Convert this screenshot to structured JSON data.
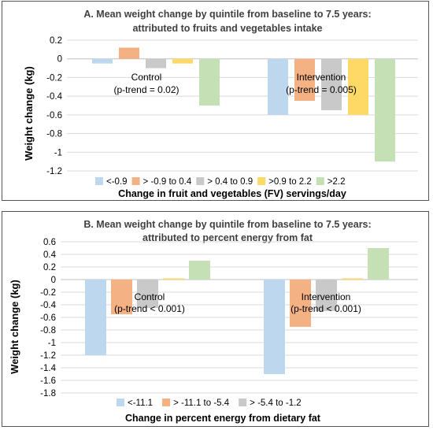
{
  "chart_data": [
    {
      "type": "bar",
      "title": "A. Mean weight change by quintile from baseline to 7.5 years:",
      "subtitle": "attributed to fruits and vegetables intake",
      "xlabel": "Change in fruit and vegetables (FV) servings/day",
      "ylabel": "Weight change (kg)",
      "ylim": [
        -1.2,
        0.2
      ],
      "yticks": [
        0.2,
        0,
        -0.2,
        -0.4,
        -0.6,
        -0.8,
        -1,
        -1.2
      ],
      "ytick_labels": [
        "0.2",
        "0",
        "-0.2",
        "-0.4",
        "-0.6",
        "-0.8",
        "-1",
        "-1.2"
      ],
      "categories": [
        "Control",
        "Intervention"
      ],
      "annotations": [
        "(p-trend = 0.02)",
        "(p-trend = 0.005)"
      ],
      "legend_position": "bottom",
      "series": [
        {
          "name": "<-0.9",
          "color": "#bdd7ee",
          "values": [
            -0.05,
            -0.6
          ]
        },
        {
          "name": "> -0.9 to 0.4",
          "color": "#f4b183",
          "values": [
            0.12,
            -0.45
          ]
        },
        {
          "name": "> 0.4 to 0.9",
          "color": "#c9c9c9",
          "values": [
            -0.1,
            -0.55
          ]
        },
        {
          "name": ">0.9 to 2.2",
          "color": "#ffd966",
          "values": [
            -0.05,
            -0.6
          ]
        },
        {
          "name": ">2.2",
          "color": "#c5e0b4",
          "values": [
            -0.5,
            -1.1
          ]
        }
      ]
    },
    {
      "type": "bar",
      "title": "B. Mean weight change by quintile from baseline to 7.5 years:",
      "subtitle": "attributed to percent energy from fat",
      "xlabel": "Change in percent energy from dietary fat",
      "ylabel": "Weight change (kg)",
      "ylim": [
        -1.8,
        0.6
      ],
      "yticks": [
        0.6,
        0.4,
        0.2,
        0,
        -0.2,
        -0.4,
        -0.6,
        -0.8,
        -1,
        -1.2,
        -1.4,
        -1.6,
        -1.8
      ],
      "ytick_labels": [
        "0.6",
        "0.4",
        "0.2",
        "0",
        "-0.2",
        "-0.4",
        "-0.6",
        "-0.8",
        "-1",
        "-1.2",
        "-1.4",
        "-1.6",
        "-1.8"
      ],
      "categories": [
        "Control",
        "Intervention"
      ],
      "annotations": [
        "(p-trend < 0.001)",
        "(p-trend < 0.001)"
      ],
      "legend_position": "bottom",
      "series": [
        {
          "name": "<-11.1",
          "color": "#bdd7ee",
          "values": [
            -1.2,
            -1.5
          ]
        },
        {
          "name": "> -11.1 to -5.4",
          "color": "#f4b183",
          "values": [
            -0.55,
            -0.75
          ]
        },
        {
          "name": "> -5.4 to -1.2",
          "color": "#c9c9c9",
          "values": [
            -0.45,
            -0.5
          ]
        },
        {
          "name": "",
          "color": "#ffd966",
          "values": [
            0.02,
            0.02
          ]
        },
        {
          "name": "",
          "color": "#c5e0b4",
          "values": [
            0.3,
            0.5
          ]
        }
      ]
    }
  ]
}
